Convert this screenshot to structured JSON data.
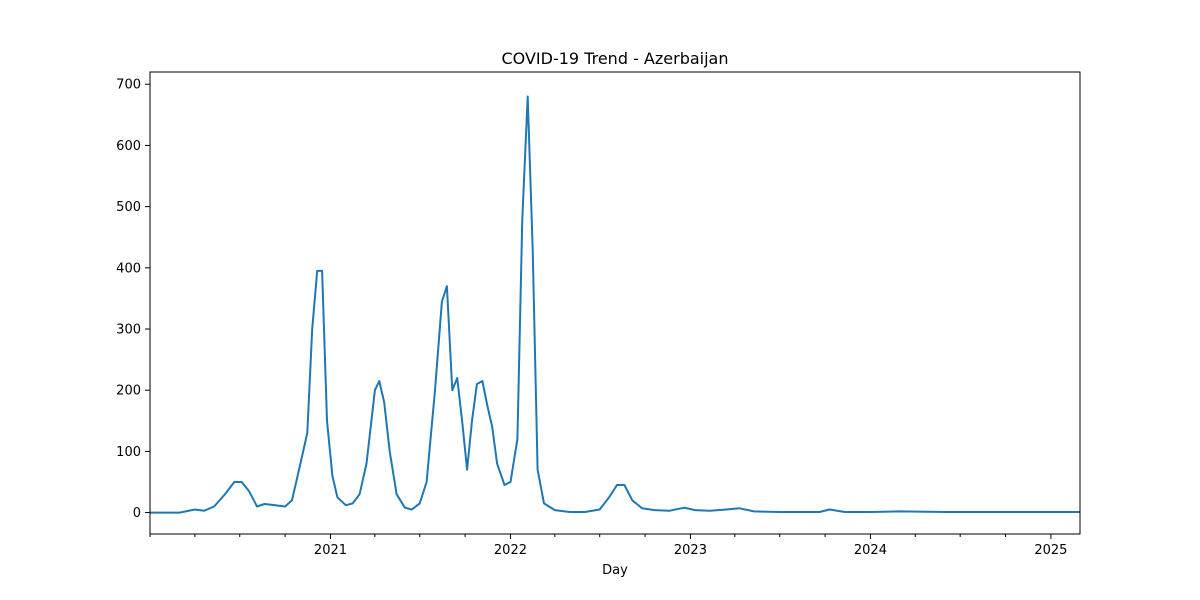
{
  "chart_data": {
    "type": "line",
    "title": "COVID-19 Trend - Azerbaijan",
    "xlabel": "Day",
    "ylabel": "",
    "grid": false,
    "legend": "none",
    "xlim": [
      "2020-01-01",
      "2025-03-01"
    ],
    "ylim": [
      -35,
      720
    ],
    "x_ticks": [
      {
        "date": "2021-01-01",
        "label": "2021"
      },
      {
        "date": "2022-01-01",
        "label": "2022"
      },
      {
        "date": "2023-01-01",
        "label": "2023"
      },
      {
        "date": "2024-01-01",
        "label": "2024"
      },
      {
        "date": "2025-01-01",
        "label": "2025"
      }
    ],
    "x_minor_ticks": [
      "2020-01-01",
      "2020-04-01",
      "2020-07-01",
      "2020-10-01",
      "2021-04-01",
      "2021-07-01",
      "2021-10-01",
      "2022-04-01",
      "2022-07-01",
      "2022-10-01",
      "2023-04-01",
      "2023-07-01",
      "2023-10-01",
      "2024-04-01",
      "2024-07-01",
      "2024-10-01"
    ],
    "y_ticks": [
      0,
      100,
      200,
      300,
      400,
      500,
      600,
      700
    ],
    "series": [
      {
        "color": "#1f77b4",
        "x": [
          "2020-01-01",
          "2020-03-01",
          "2020-04-01",
          "2020-04-20",
          "2020-05-10",
          "2020-06-01",
          "2020-06-20",
          "2020-07-05",
          "2020-07-20",
          "2020-08-05",
          "2020-08-20",
          "2020-09-01",
          "2020-10-01",
          "2020-10-15",
          "2020-11-01",
          "2020-11-15",
          "2020-11-25",
          "2020-12-05",
          "2020-12-15",
          "2020-12-25",
          "2021-01-05",
          "2021-01-15",
          "2021-02-01",
          "2021-02-15",
          "2021-03-01",
          "2021-03-15",
          "2021-04-01",
          "2021-04-10",
          "2021-04-20",
          "2021-05-01",
          "2021-05-15",
          "2021-06-01",
          "2021-06-15",
          "2021-07-01",
          "2021-07-15",
          "2021-08-01",
          "2021-08-15",
          "2021-08-25",
          "2021-09-05",
          "2021-09-15",
          "2021-09-25",
          "2021-10-05",
          "2021-10-15",
          "2021-10-25",
          "2021-11-05",
          "2021-11-15",
          "2021-11-25",
          "2021-12-05",
          "2021-12-20",
          "2022-01-01",
          "2022-01-15",
          "2022-01-25",
          "2022-02-05",
          "2022-02-15",
          "2022-02-25",
          "2022-03-10",
          "2022-04-01",
          "2022-05-01",
          "2022-06-01",
          "2022-07-01",
          "2022-07-20",
          "2022-08-05",
          "2022-08-20",
          "2022-09-05",
          "2022-09-25",
          "2022-10-20",
          "2022-11-20",
          "2022-12-20",
          "2023-01-10",
          "2023-02-10",
          "2023-03-15",
          "2023-04-10",
          "2023-05-10",
          "2023-07-01",
          "2023-09-20",
          "2023-10-10",
          "2023-11-10",
          "2024-01-01",
          "2024-03-01",
          "2024-06-01",
          "2024-09-01",
          "2024-12-01",
          "2025-03-01"
        ],
        "y": [
          0,
          0,
          5,
          3,
          10,
          30,
          50,
          50,
          35,
          10,
          14,
          13,
          10,
          20,
          80,
          130,
          300,
          395,
          395,
          150,
          60,
          25,
          12,
          15,
          30,
          80,
          200,
          215,
          180,
          100,
          30,
          8,
          5,
          15,
          50,
          200,
          345,
          370,
          200,
          220,
          150,
          70,
          150,
          210,
          215,
          175,
          140,
          80,
          45,
          50,
          120,
          480,
          680,
          430,
          70,
          15,
          4,
          1,
          1,
          5,
          25,
          45,
          45,
          20,
          7,
          4,
          3,
          8,
          4,
          3,
          5,
          7,
          2,
          1,
          1,
          5,
          1,
          1,
          2,
          1,
          1,
          1,
          1
        ]
      }
    ]
  }
}
